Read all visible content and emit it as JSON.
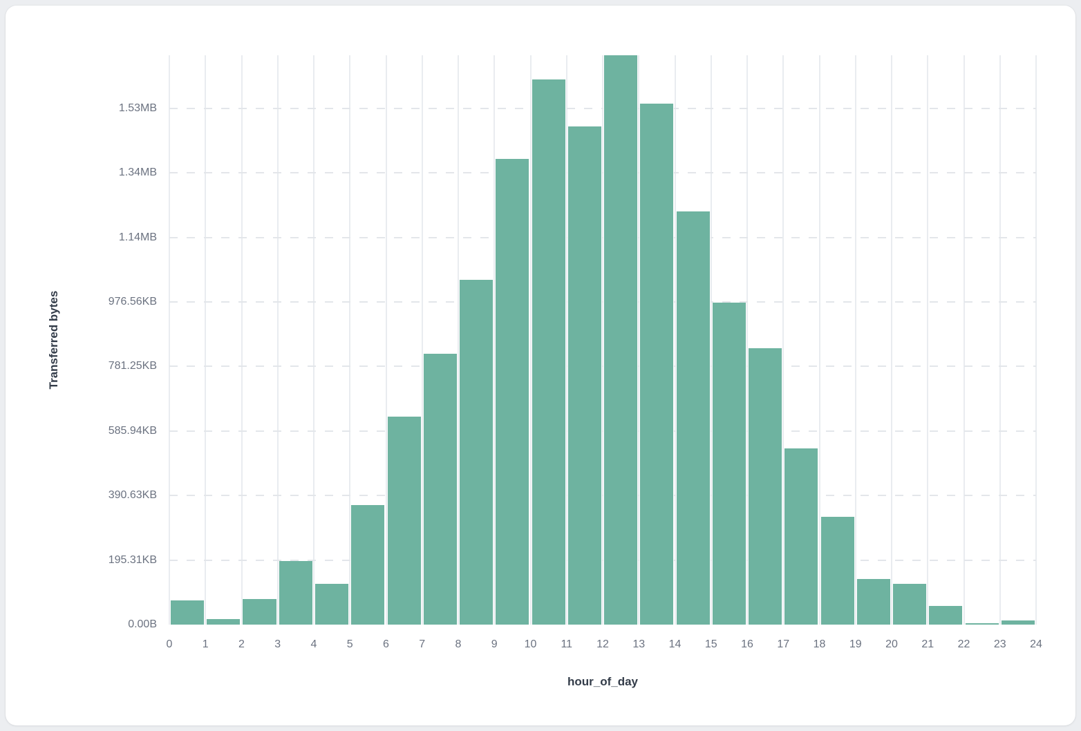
{
  "chart_data": {
    "type": "bar",
    "subtype": "histogram",
    "title": "",
    "xlabel": "hour_of_day",
    "ylabel": "Transferred bytes",
    "bin_start_hours": [
      0,
      1,
      2,
      3,
      4,
      5,
      6,
      7,
      8,
      9,
      10,
      11,
      12,
      13,
      14,
      15,
      16,
      17,
      18,
      19,
      20,
      21,
      22,
      23
    ],
    "values_bytes": [
      75000,
      16500,
      78600,
      197000,
      127000,
      370000,
      644500,
      839400,
      1068500,
      1443000,
      1689500,
      1544000,
      1764500,
      1614500,
      1280500,
      998000,
      856500,
      546000,
      334000,
      141300,
      126300,
      57800,
      4300,
      12900
    ],
    "x_tick_labels": [
      "0",
      "1",
      "2",
      "3",
      "4",
      "5",
      "6",
      "7",
      "8",
      "9",
      "10",
      "11",
      "12",
      "13",
      "14",
      "15",
      "16",
      "17",
      "18",
      "19",
      "20",
      "21",
      "22",
      "23",
      "24"
    ],
    "y_ticks": [
      {
        "label": "0.00B",
        "bytes": 0
      },
      {
        "label": "195.31KB",
        "bytes": 200000
      },
      {
        "label": "390.63KB",
        "bytes": 400000
      },
      {
        "label": "585.94KB",
        "bytes": 600000
      },
      {
        "label": "781.25KB",
        "bytes": 800000
      },
      {
        "label": "976.56KB",
        "bytes": 1000000
      },
      {
        "label": "1.14MB",
        "bytes": 1200000
      },
      {
        "label": "1.34MB",
        "bytes": 1400000
      },
      {
        "label": "1.53MB",
        "bytes": 1600000
      }
    ],
    "ylim_bytes": [
      0,
      1764500
    ],
    "bar_color": "#6eb3a0",
    "v_gridline_color": "#e9ecf0",
    "h_gridline_style": "dashed",
    "legend": "none",
    "background": "#ffffff"
  }
}
